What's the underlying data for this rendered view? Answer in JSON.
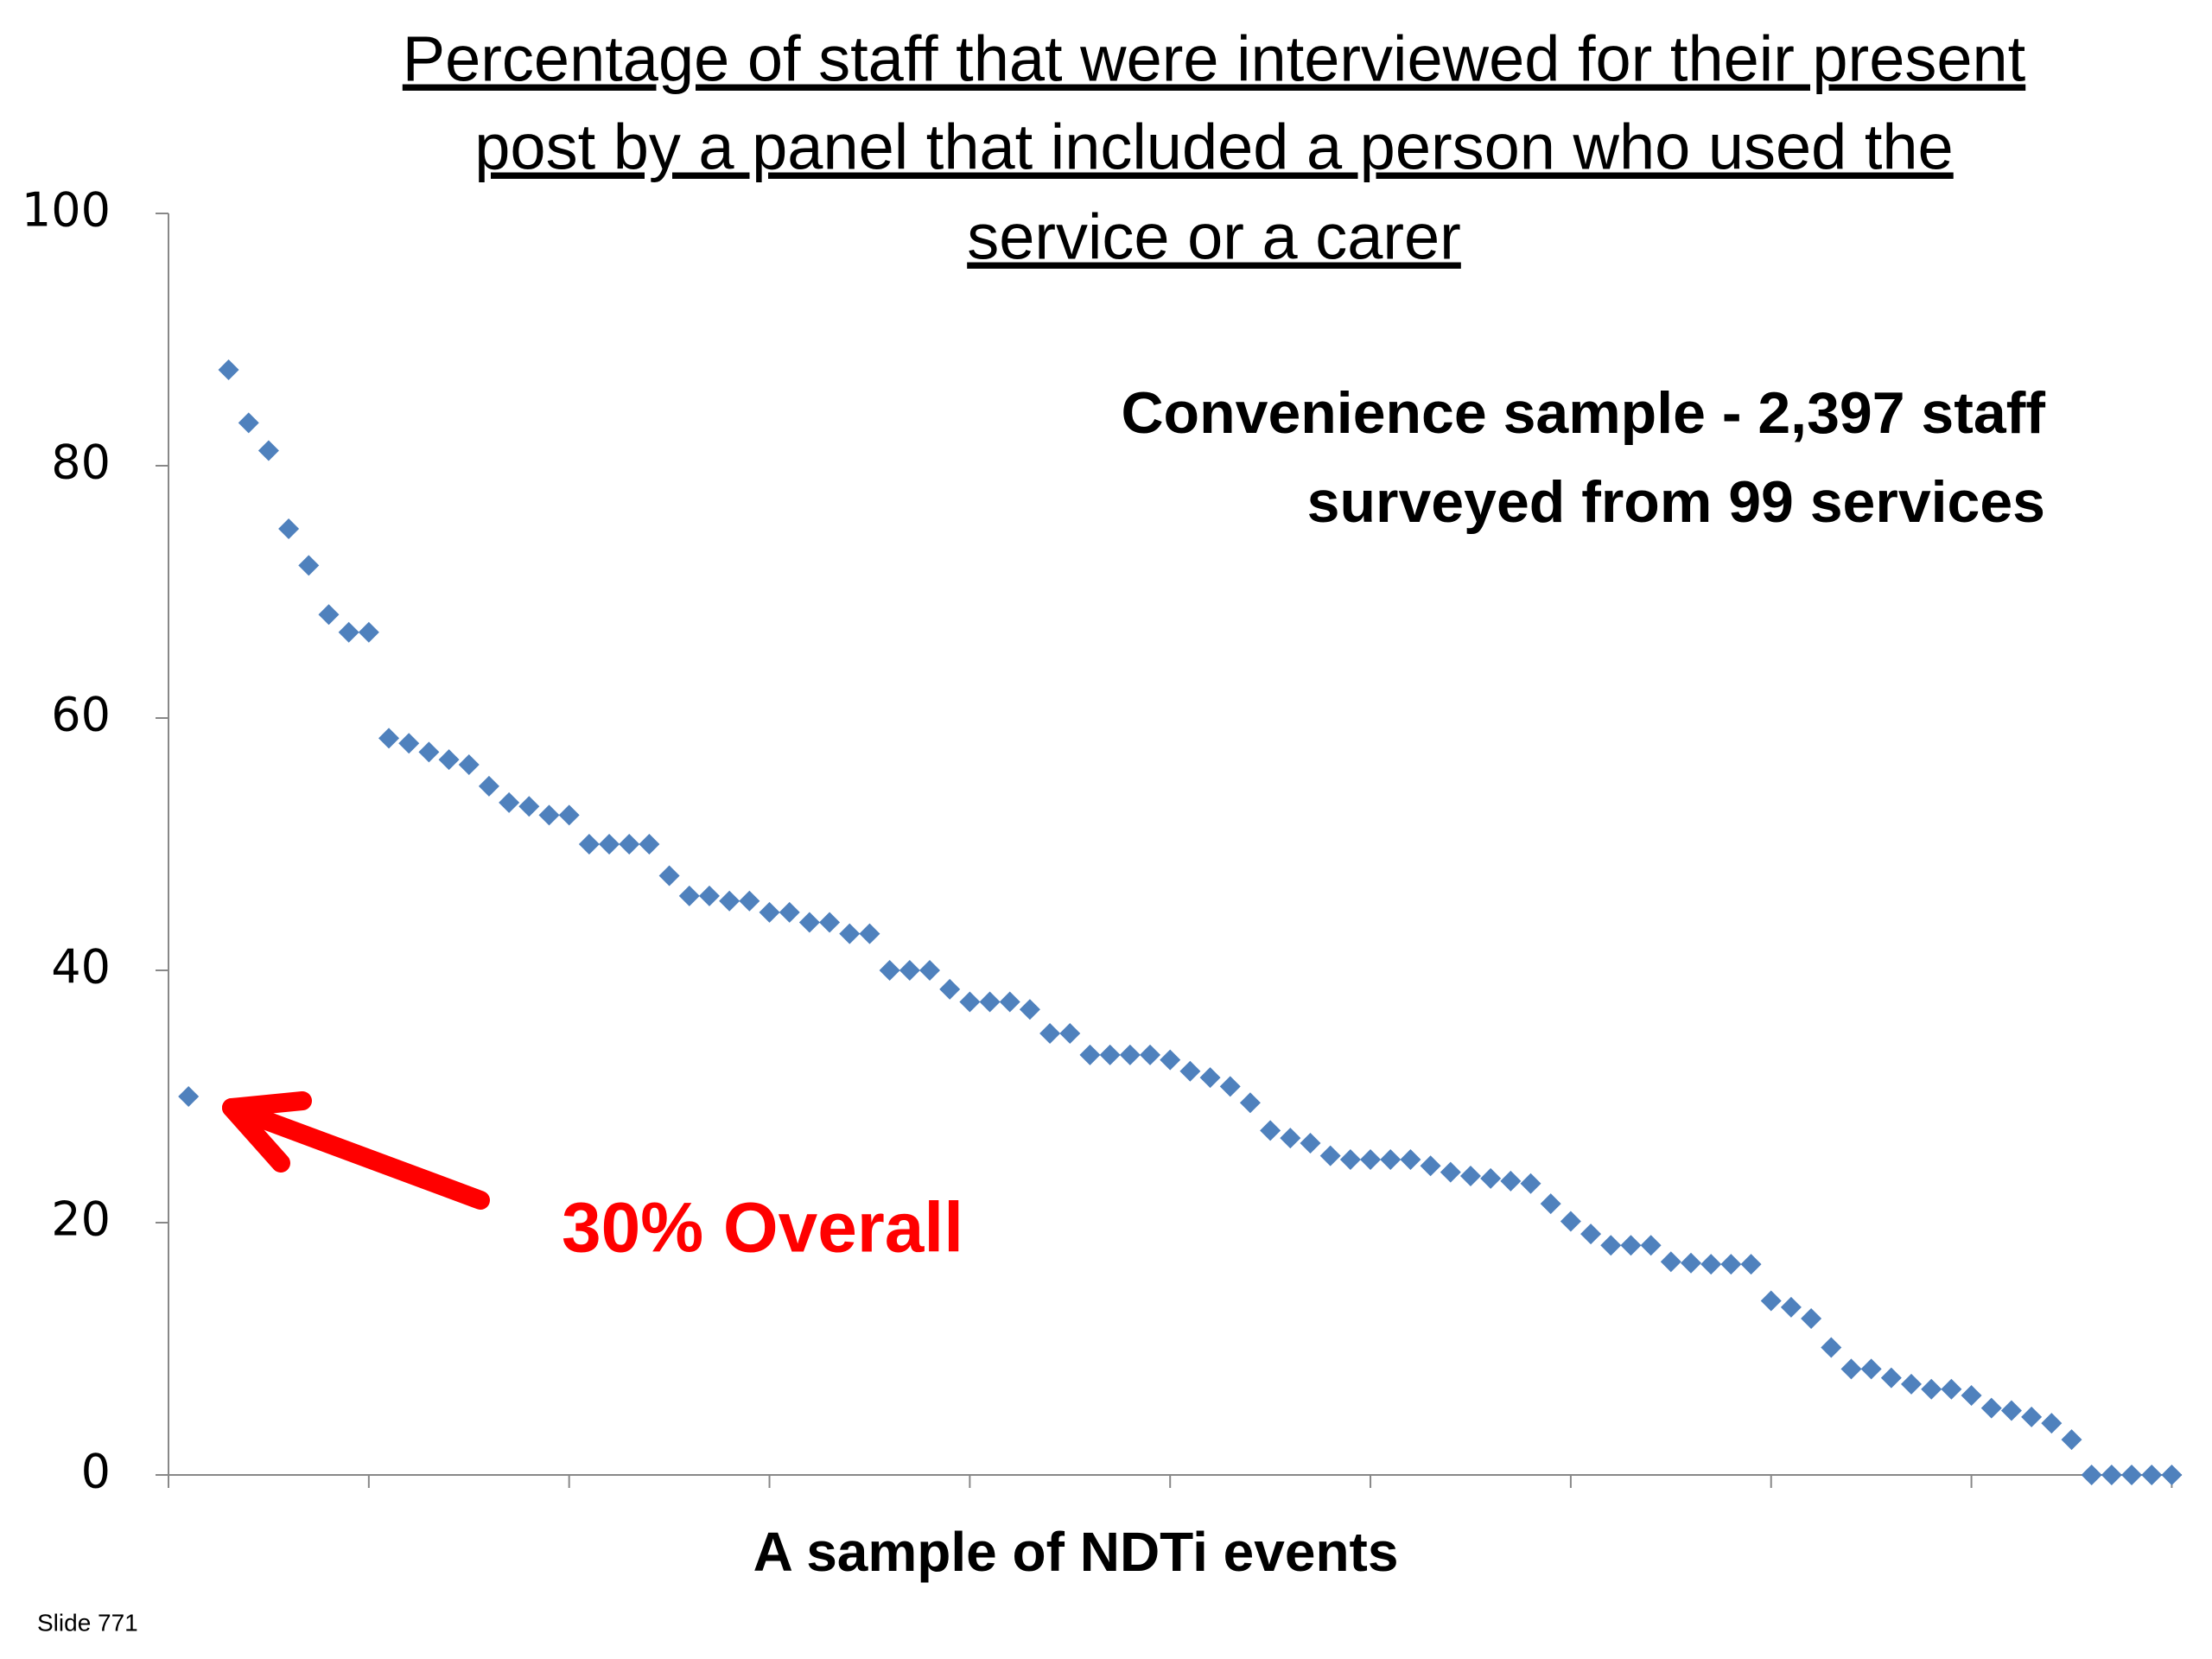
{
  "chart_data": {
    "type": "scatter",
    "title": [
      "Percentage of staff that were interviewed for their present",
      "post by a panel that included a person who used the",
      "service or a carer"
    ],
    "annotations": [
      "Convenience sample - 2,397 staff",
      "surveyed from 99 services"
    ],
    "callout": "30% Overall",
    "xlabel": "A sample of NDTi events",
    "footer": "Slide 771",
    "color": "#4f81bd",
    "x": [
      1,
      3,
      4,
      5,
      6,
      7,
      8,
      9,
      10,
      11,
      12,
      13,
      14,
      15,
      16,
      17,
      18,
      19,
      20,
      21,
      22,
      23,
      24,
      25,
      26,
      27,
      28,
      29,
      30,
      31,
      32,
      33,
      34,
      35,
      36,
      37,
      38,
      39,
      40,
      41,
      42,
      43,
      44,
      45,
      46,
      47,
      48,
      49,
      50,
      51,
      52,
      53,
      54,
      55,
      56,
      57,
      58,
      59,
      60,
      61,
      62,
      63,
      64,
      65,
      66,
      67,
      68,
      69,
      70,
      71,
      72,
      73,
      74,
      75,
      76,
      77,
      78,
      79,
      80,
      81,
      82,
      83,
      84,
      85,
      86,
      87,
      88,
      89,
      90,
      91,
      92,
      93,
      94,
      95,
      96,
      97,
      98,
      99,
      100
    ],
    "values": [
      30,
      87.6,
      83.4,
      81.2,
      75,
      72.1,
      68.2,
      66.8,
      66.8,
      58.4,
      58,
      57.3,
      56.7,
      56.3,
      54.6,
      53.3,
      53,
      52.3,
      52.3,
      50,
      50,
      50,
      50,
      47.5,
      45.9,
      45.9,
      45.5,
      45.5,
      44.6,
      44.6,
      43.8,
      43.8,
      42.9,
      42.9,
      40,
      40,
      40,
      38.5,
      37.5,
      37.5,
      37.5,
      36.9,
      35,
      35,
      33.3,
      33.3,
      33.3,
      33.3,
      32.9,
      32,
      31.5,
      30.8,
      29.5,
      27.3,
      26.7,
      26.3,
      25.3,
      25,
      25,
      25,
      25,
      24.5,
      24,
      23.7,
      23.5,
      23.3,
      23.1,
      21.5,
      20.1,
      19.1,
      18.2,
      18.2,
      18.2,
      16.9,
      16.8,
      16.7,
      16.7,
      16.7,
      13.8,
      13.3,
      12.4,
      10.1,
      8.4,
      8.4,
      7.7,
      7.2,
      6.8,
      6.8,
      6.3,
      5.3,
      5.1,
      4.6,
      4.1,
      2.8,
      0,
      0,
      0,
      0,
      0
    ],
    "xlim": [
      0,
      100.5
    ],
    "xticks": [
      0,
      10,
      20,
      30,
      40,
      50,
      60,
      70,
      80,
      90,
      100
    ],
    "ylim": [
      0,
      100
    ],
    "yticks": [
      0,
      20,
      40,
      60,
      80,
      100
    ]
  }
}
